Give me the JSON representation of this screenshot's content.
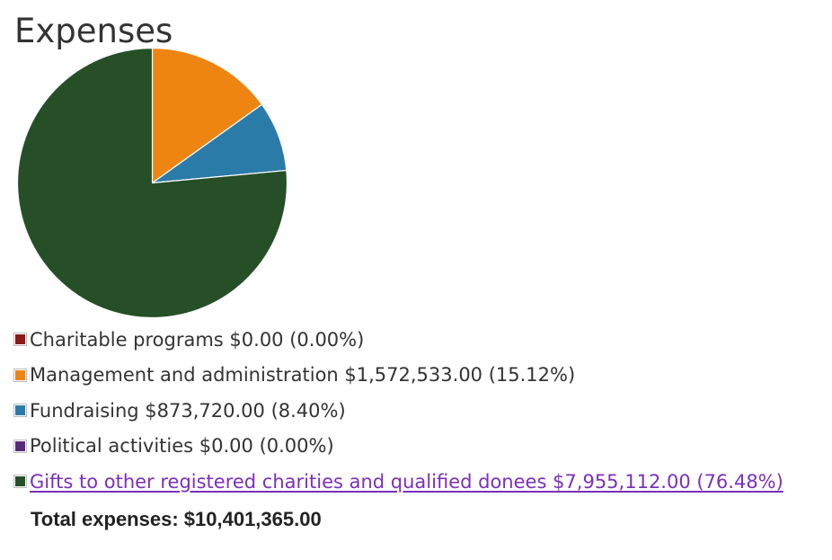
{
  "title": "Expenses",
  "chart_data": {
    "type": "pie",
    "title": "Expenses",
    "slices": [
      {
        "label": "Charitable programs",
        "amount": "$0.00",
        "percent_text": "(0.00%)",
        "value": 0.0,
        "color": "#8b1a1a"
      },
      {
        "label": "Management and administration",
        "amount": "$1,572,533.00",
        "percent_text": "(15.12%)",
        "value": 15.12,
        "color": "#ee8512"
      },
      {
        "label": "Fundraising",
        "amount": "$873,720.00",
        "percent_text": "(8.40%)",
        "value": 8.4,
        "color": "#2b7ba8"
      },
      {
        "label": "Political activities",
        "amount": "$0.00",
        "percent_text": "(0.00%)",
        "value": 0.0,
        "color": "#5a2a7a"
      },
      {
        "label": "Gifts to other registered charities and qualified donees",
        "amount": "$7,955,112.00",
        "percent_text": "(76.48%)",
        "value": 76.48,
        "color": "#264f28",
        "is_link": true
      }
    ],
    "legend_position": "bottom"
  },
  "total": {
    "label": "Total expenses:",
    "value": "$10,401,365.00"
  },
  "colors": {
    "text": "#333333",
    "link": "#7b2fbe",
    "slice_border": "#ffffff"
  }
}
